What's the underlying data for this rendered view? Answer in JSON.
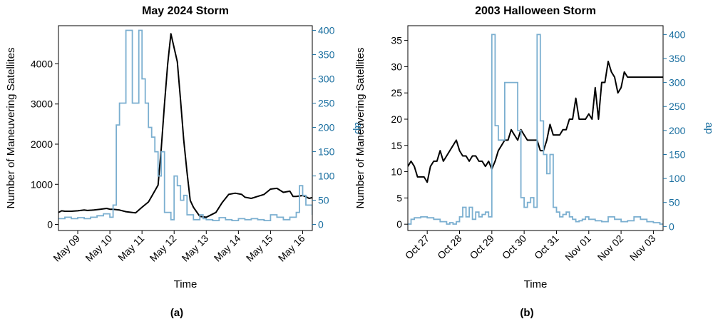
{
  "chart_data": [
    {
      "type": "line",
      "panel_label": "(a)",
      "title": "May 2024 Storm",
      "xlabel": "Time",
      "ylabel": "Number of Maneuvering Satellites",
      "ylabel_right": "ap",
      "x_ticks": [
        "May 09",
        "May 10",
        "May 11",
        "May 12",
        "May 13",
        "May 14",
        "May 15",
        "May 16"
      ],
      "xlim": [
        -0.6,
        7.3
      ],
      "ylim": [
        -150,
        4950
      ],
      "ylim_right": [
        -12.4,
        409.6
      ],
      "y_ticks": [
        0,
        1000,
        2000,
        3000,
        4000
      ],
      "y_ticks_right": [
        0,
        50,
        100,
        150,
        200,
        250,
        300,
        350,
        400
      ],
      "colors": {
        "satellites": "#000000",
        "ap": "#7bafd0",
        "right_axis": "#1a6fa0"
      },
      "series": [
        {
          "axis": "left",
          "style": "line",
          "x": [
            -0.6,
            -0.5,
            -0.4,
            -0.2,
            0.0,
            0.2,
            0.3,
            0.5,
            0.7,
            0.9,
            1.0,
            1.1,
            1.3,
            1.5,
            1.7,
            1.8,
            2.0,
            2.2,
            2.3,
            2.5,
            2.6,
            2.7,
            2.8,
            2.9,
            3.0,
            3.1,
            3.2,
            3.3,
            3.4,
            3.5,
            3.6,
            3.8,
            4.0,
            4.1,
            4.3,
            4.5,
            4.7,
            4.9,
            5.1,
            5.2,
            5.4,
            5.6,
            5.8,
            6.0,
            6.2,
            6.4,
            6.6,
            6.7,
            6.8,
            7.0,
            7.1,
            7.2,
            7.3
          ],
          "y": [
            300,
            340,
            330,
            330,
            340,
            360,
            350,
            360,
            380,
            400,
            380,
            380,
            360,
            320,
            300,
            290,
            430,
            560,
            700,
            980,
            1900,
            3000,
            4000,
            4750,
            4400,
            4050,
            3100,
            2100,
            1300,
            600,
            430,
            200,
            180,
            220,
            300,
            550,
            750,
            780,
            750,
            680,
            650,
            700,
            750,
            880,
            900,
            800,
            830,
            700,
            700,
            720,
            690,
            650,
            670
          ],
          "values_note": ""
        },
        {
          "axis": "right",
          "style": "step",
          "x": [
            -0.6,
            -0.4,
            -0.2,
            0.0,
            0.2,
            0.4,
            0.6,
            0.8,
            1.0,
            1.1,
            1.2,
            1.3,
            1.5,
            1.6,
            1.7,
            1.8,
            1.9,
            2.0,
            2.1,
            2.2,
            2.3,
            2.4,
            2.5,
            2.6,
            2.7,
            2.8,
            2.9,
            3.0,
            3.1,
            3.2,
            3.3,
            3.4,
            3.5,
            3.6,
            3.7,
            3.8,
            3.9,
            4.0,
            4.2,
            4.4,
            4.6,
            4.8,
            5.0,
            5.2,
            5.4,
            5.6,
            5.8,
            6.0,
            6.2,
            6.4,
            6.6,
            6.8,
            6.9,
            7.0,
            7.1,
            7.2,
            7.3
          ],
          "y": [
            12,
            15,
            12,
            14,
            12,
            15,
            18,
            22,
            15,
            40,
            205,
            250,
            400,
            400,
            250,
            250,
            400,
            300,
            250,
            200,
            180,
            150,
            100,
            150,
            25,
            25,
            10,
            100,
            80,
            50,
            60,
            20,
            20,
            10,
            10,
            20,
            12,
            10,
            8,
            14,
            10,
            8,
            12,
            10,
            12,
            10,
            8,
            20,
            15,
            10,
            15,
            25,
            80,
            60,
            40,
            40,
            20
          ]
        }
      ]
    },
    {
      "type": "line",
      "panel_label": "(b)",
      "title": "2003 Halloween Storm",
      "xlabel": "Time",
      "ylabel": "Number of Maneuvering Satellites",
      "ylabel_right": "ap",
      "x_ticks": [
        "Oct 27",
        "Oct 28",
        "Oct 29",
        "Oct 30",
        "Oct 31",
        "Nov 01",
        "Nov 02",
        "Nov 03"
      ],
      "xlim": [
        -0.6,
        7.3
      ],
      "ylim": [
        -1.2,
        37.8
      ],
      "ylim_right": [
        -8.4,
        418.4
      ],
      "y_ticks": [
        0,
        5,
        10,
        15,
        20,
        25,
        30,
        35
      ],
      "y_ticks_right": [
        0,
        50,
        100,
        150,
        200,
        250,
        300,
        350,
        400
      ],
      "colors": {
        "satellites": "#000000",
        "ap": "#7bafd0",
        "right_axis": "#1a6fa0"
      },
      "series": [
        {
          "axis": "left",
          "style": "line",
          "x": [
            -0.6,
            -0.5,
            -0.4,
            -0.3,
            -0.2,
            -0.1,
            0.0,
            0.1,
            0.2,
            0.3,
            0.4,
            0.5,
            0.6,
            0.7,
            0.8,
            0.9,
            1.0,
            1.1,
            1.2,
            1.3,
            1.4,
            1.5,
            1.6,
            1.7,
            1.8,
            1.9,
            2.0,
            2.1,
            2.2,
            2.3,
            2.4,
            2.5,
            2.6,
            2.7,
            2.8,
            2.9,
            3.0,
            3.1,
            3.2,
            3.3,
            3.4,
            3.5,
            3.6,
            3.7,
            3.8,
            3.9,
            4.0,
            4.1,
            4.2,
            4.3,
            4.4,
            4.5,
            4.6,
            4.7,
            4.8,
            4.9,
            5.0,
            5.1,
            5.2,
            5.3,
            5.4,
            5.5,
            5.6,
            5.7,
            5.8,
            5.9,
            6.0,
            6.1,
            6.2,
            6.3,
            6.4,
            6.5,
            6.6,
            6.7,
            6.8,
            6.9,
            7.0,
            7.1,
            7.2,
            7.3
          ],
          "y": [
            11,
            12,
            11,
            9,
            9,
            9,
            8,
            11,
            12,
            12,
            14,
            12,
            13,
            14,
            15,
            16,
            14,
            13,
            13,
            12,
            13,
            13,
            12,
            12,
            11,
            12,
            10.5,
            12,
            14,
            15,
            16,
            16,
            18,
            17,
            16,
            18,
            17,
            16,
            16,
            16,
            16,
            14,
            14,
            16,
            19,
            17,
            17,
            17,
            18,
            18,
            20,
            20,
            24,
            20,
            20,
            20,
            21,
            20,
            26,
            20,
            27,
            27,
            31,
            29,
            28,
            25,
            26,
            29,
            28,
            28,
            28,
            28,
            28,
            28,
            28,
            28,
            28,
            28,
            28,
            28
          ]
        },
        {
          "axis": "right",
          "style": "step",
          "x": [
            -0.6,
            -0.5,
            -0.4,
            -0.2,
            0.0,
            0.2,
            0.4,
            0.6,
            0.7,
            0.8,
            0.9,
            1.0,
            1.1,
            1.2,
            1.3,
            1.4,
            1.5,
            1.6,
            1.7,
            1.8,
            1.9,
            2.0,
            2.1,
            2.2,
            2.4,
            2.6,
            2.8,
            2.9,
            3.0,
            3.1,
            3.2,
            3.3,
            3.4,
            3.5,
            3.6,
            3.7,
            3.8,
            3.9,
            4.0,
            4.1,
            4.2,
            4.3,
            4.4,
            4.5,
            4.6,
            4.7,
            4.8,
            4.9,
            5.0,
            5.2,
            5.4,
            5.6,
            5.8,
            6.0,
            6.2,
            6.4,
            6.6,
            6.8,
            7.0,
            7.2
          ],
          "y": [
            5,
            15,
            18,
            20,
            18,
            15,
            10,
            5,
            8,
            5,
            10,
            20,
            40,
            20,
            40,
            15,
            30,
            20,
            25,
            30,
            20,
            400,
            210,
            180,
            300,
            300,
            200,
            60,
            40,
            50,
            60,
            40,
            400,
            220,
            150,
            110,
            150,
            40,
            30,
            20,
            25,
            30,
            20,
            15,
            10,
            12,
            15,
            20,
            15,
            12,
            10,
            20,
            15,
            10,
            12,
            20,
            15,
            10,
            8,
            5
          ]
        }
      ]
    }
  ]
}
